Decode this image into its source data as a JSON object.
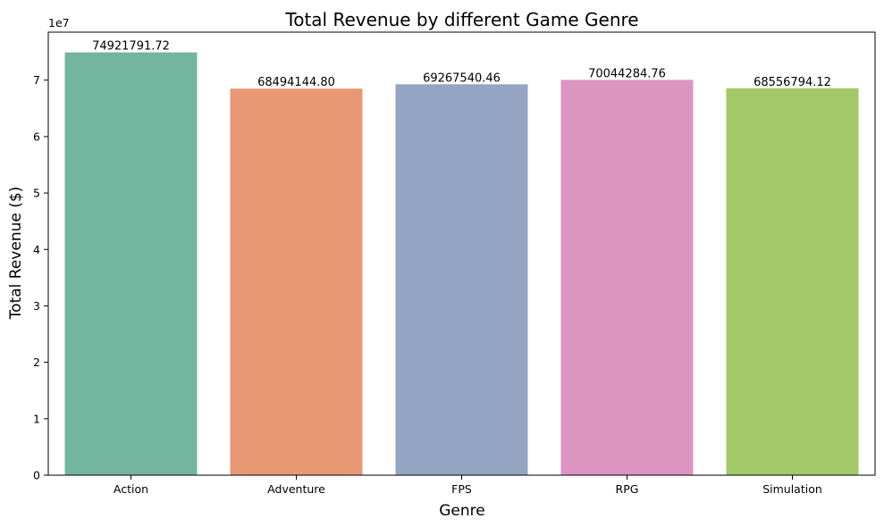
{
  "chart_data": {
    "type": "bar",
    "title": "Total Revenue by different Game Genre",
    "xlabel": "Genre",
    "ylabel": "Total Revenue ($)",
    "y_scale_label": "1e7",
    "y_scale_factor": 10000000,
    "ylim": [
      0,
      78500000
    ],
    "yticks": [
      0,
      10000000,
      20000000,
      30000000,
      40000000,
      50000000,
      60000000,
      70000000
    ],
    "ytick_labels": [
      "0",
      "1",
      "2",
      "3",
      "4",
      "5",
      "6",
      "7"
    ],
    "categories": [
      "Action",
      "Adventure",
      "FPS",
      "RPG",
      "Simulation"
    ],
    "values": [
      74921791.72,
      68494144.8,
      69267540.46,
      70044284.76,
      68556794.12
    ],
    "value_labels": [
      "74921791.72",
      "68494144.80",
      "69267540.46",
      "70044284.76",
      "68556794.12"
    ],
    "colors": [
      "#74b5a0",
      "#e99874",
      "#94a4c3",
      "#dc95c0",
      "#a3c867"
    ],
    "grid": false,
    "legend": "none"
  }
}
